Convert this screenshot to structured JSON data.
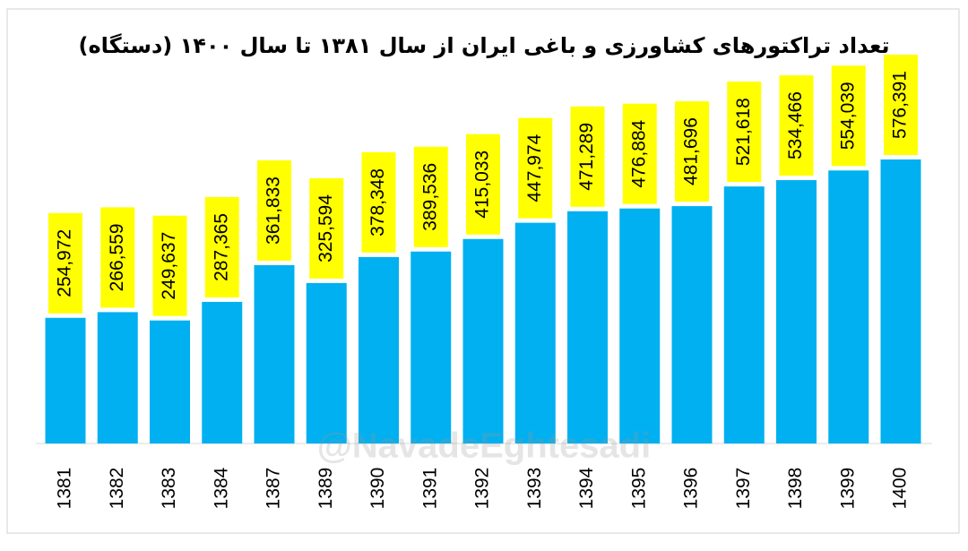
{
  "chart_data": {
    "type": "bar",
    "title": "تعداد تراکتورهای کشاورزی و باغی ایران از سال ۱۳۸۱ تا سال ۱۴۰۰ (دستگاه)",
    "watermark": "@NavadeEghtesadi",
    "categories": [
      "1381",
      "1382",
      "1383",
      "1384",
      "1387",
      "1389",
      "1390",
      "1391",
      "1392",
      "1393",
      "1394",
      "1395",
      "1396",
      "1397",
      "1398",
      "1399",
      "1400"
    ],
    "values": [
      254972,
      266559,
      249637,
      287365,
      361833,
      325594,
      378348,
      389536,
      415033,
      447974,
      471289,
      476884,
      481696,
      521618,
      534466,
      554039,
      576391
    ],
    "value_labels": [
      "254,972",
      "266,559",
      "249,637",
      "287,365",
      "361,833",
      "325,594",
      "378,348",
      "389,536",
      "415,033",
      "447,974",
      "471,289",
      "476,884",
      "481,696",
      "521,618",
      "534,466",
      "554,039",
      "576,391"
    ],
    "color": "#00b0f0",
    "label_color": "#ffff00"
  }
}
